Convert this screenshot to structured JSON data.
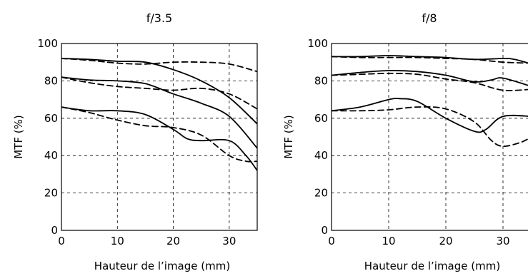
{
  "chart_data": [
    {
      "type": "line",
      "title": "f/3.5",
      "xlabel": "Hauteur de l’image (mm)",
      "ylabel": "MTF (%)",
      "xlim": [
        0,
        35
      ],
      "ylim": [
        0,
        100
      ],
      "xticks": [
        0,
        10,
        20,
        30
      ],
      "yticks": [
        0,
        20,
        40,
        60,
        80,
        100
      ],
      "grid": "dashed",
      "series": [
        {
          "style": "solid",
          "x": [
            0,
            5,
            10,
            15,
            20,
            25,
            30,
            35
          ],
          "y": [
            92,
            91.5,
            90.5,
            90,
            86,
            80,
            71,
            57
          ]
        },
        {
          "style": "dashed",
          "x": [
            0,
            5,
            10,
            15,
            20,
            25,
            30,
            35
          ],
          "y": [
            92,
            91,
            89.5,
            89,
            90,
            90,
            89,
            85
          ]
        },
        {
          "style": "solid",
          "x": [
            0,
            5,
            10,
            15,
            20,
            25,
            30,
            35
          ],
          "y": [
            82,
            80.5,
            80,
            78.5,
            73,
            68,
            61,
            44
          ]
        },
        {
          "style": "dashed",
          "x": [
            0,
            5,
            10,
            15,
            20,
            25,
            30,
            35
          ],
          "y": [
            82,
            79,
            77,
            76,
            75,
            76,
            73,
            65
          ]
        },
        {
          "style": "solid",
          "x": [
            0,
            5,
            10,
            15,
            20,
            22.5,
            25,
            30,
            33,
            35
          ],
          "y": [
            66,
            64,
            64,
            62,
            54,
            49,
            48,
            48,
            40,
            32
          ]
        },
        {
          "style": "dashed",
          "x": [
            0,
            5,
            10,
            15,
            20,
            25,
            30,
            33,
            35
          ],
          "y": [
            66,
            63,
            59,
            56,
            55,
            51,
            40,
            37,
            37
          ]
        }
      ]
    },
    {
      "type": "line",
      "title": "f/8",
      "xlabel": "Hauteur de l’image (mm)",
      "ylabel": "MTF (%)",
      "xlim": [
        0,
        35
      ],
      "ylim": [
        0,
        100
      ],
      "xticks": [
        0,
        10,
        20,
        30
      ],
      "yticks": [
        0,
        20,
        40,
        60,
        80,
        100
      ],
      "grid": "dashed",
      "series": [
        {
          "style": "solid",
          "x": [
            0,
            5,
            10,
            15,
            20,
            25,
            30,
            32,
            35
          ],
          "y": [
            93,
            93,
            93.5,
            93,
            92.5,
            91.5,
            92,
            91.5,
            89
          ]
        },
        {
          "style": "dashed",
          "x": [
            0,
            5,
            10,
            15,
            20,
            25,
            30,
            35
          ],
          "y": [
            93,
            92.5,
            92.5,
            92.5,
            92,
            91.5,
            90,
            89.5
          ]
        },
        {
          "style": "solid",
          "x": [
            0,
            5,
            10,
            15,
            20,
            25,
            28,
            30,
            35
          ],
          "y": [
            83,
            84.5,
            85.5,
            85,
            83,
            79.5,
            80.5,
            81.5,
            77
          ]
        },
        {
          "style": "dashed",
          "x": [
            0,
            5,
            10,
            15,
            20,
            25,
            30,
            35
          ],
          "y": [
            83,
            83.5,
            84,
            83.5,
            81,
            79,
            75,
            75.5
          ]
        },
        {
          "style": "solid",
          "x": [
            0,
            5,
            10,
            12,
            15,
            20,
            25,
            27,
            30,
            35
          ],
          "y": [
            64,
            66,
            70,
            70.5,
            69,
            60,
            53,
            54,
            61,
            61
          ]
        },
        {
          "style": "dashed",
          "x": [
            0,
            5,
            10,
            15,
            20,
            25,
            28,
            30,
            33,
            35
          ],
          "y": [
            64,
            64,
            64.5,
            66,
            65,
            58,
            48,
            45,
            47,
            50
          ]
        }
      ]
    }
  ]
}
